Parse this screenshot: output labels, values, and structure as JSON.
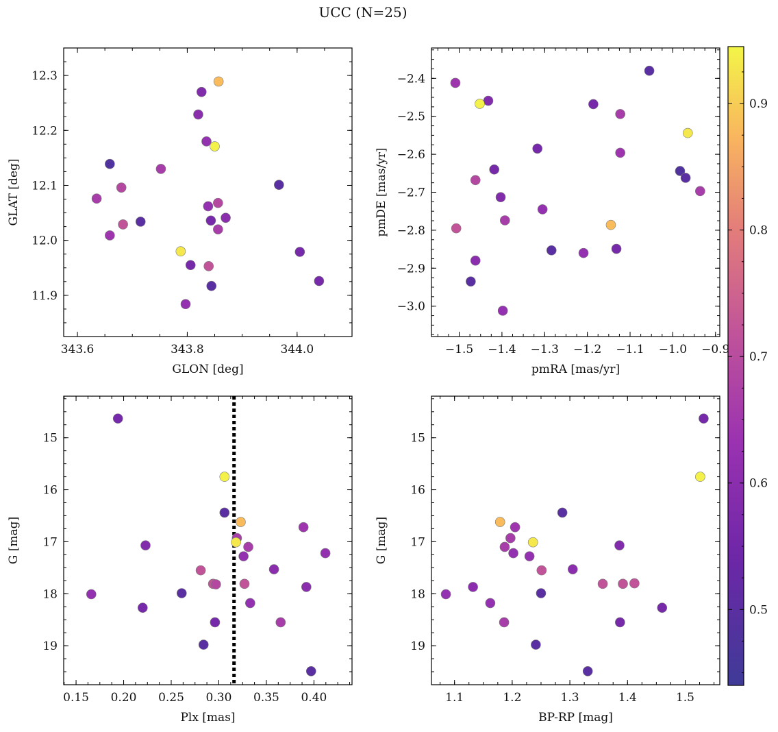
{
  "figure": {
    "title": "UCC (N=25)"
  },
  "colorbar": {
    "range": [
      0.44,
      0.945
    ],
    "ticks": [
      0.5,
      0.6,
      0.7,
      0.8,
      0.9
    ],
    "tick_labels": [
      "0.5",
      "0.6",
      "0.7",
      "0.8",
      "0.9"
    ],
    "colormap": "plasma"
  },
  "chart_data": [
    {
      "type": "scatter",
      "xlabel": "GLON [deg]",
      "ylabel": "GLAT [deg]",
      "xlim": [
        343.575,
        344.1
      ],
      "ylim": [
        11.825,
        12.35
      ],
      "x_ticks": [
        343.6,
        343.8,
        344.0
      ],
      "x_tick_labels": [
        "343.6",
        "343.8",
        "344.0"
      ],
      "y_ticks": [
        11.9,
        12.0,
        12.1,
        12.2,
        12.3
      ],
      "y_tick_labels": [
        "11.9",
        "12.0",
        "12.1",
        "12.2",
        "12.3"
      ],
      "y_inverted": false,
      "points": [
        {
          "x": 343.857,
          "y": 12.289,
          "c": 0.88
        },
        {
          "x": 343.826,
          "y": 12.27,
          "c": 0.58
        },
        {
          "x": 343.82,
          "y": 12.229,
          "c": 0.6
        },
        {
          "x": 343.835,
          "y": 12.18,
          "c": 0.62
        },
        {
          "x": 343.85,
          "y": 12.171,
          "c": 0.94
        },
        {
          "x": 343.659,
          "y": 12.139,
          "c": 0.48
        },
        {
          "x": 343.752,
          "y": 12.13,
          "c": 0.66
        },
        {
          "x": 343.967,
          "y": 12.101,
          "c": 0.5
        },
        {
          "x": 343.68,
          "y": 12.096,
          "c": 0.69
        },
        {
          "x": 343.635,
          "y": 12.076,
          "c": 0.66
        },
        {
          "x": 343.856,
          "y": 12.068,
          "c": 0.69
        },
        {
          "x": 343.838,
          "y": 12.062,
          "c": 0.62
        },
        {
          "x": 343.87,
          "y": 12.041,
          "c": 0.6
        },
        {
          "x": 343.843,
          "y": 12.036,
          "c": 0.56
        },
        {
          "x": 343.715,
          "y": 12.034,
          "c": 0.5
        },
        {
          "x": 343.683,
          "y": 12.029,
          "c": 0.72
        },
        {
          "x": 343.856,
          "y": 12.02,
          "c": 0.66
        },
        {
          "x": 343.659,
          "y": 12.009,
          "c": 0.64
        },
        {
          "x": 343.788,
          "y": 11.98,
          "c": 0.93
        },
        {
          "x": 344.005,
          "y": 11.979,
          "c": 0.56
        },
        {
          "x": 343.806,
          "y": 11.955,
          "c": 0.56
        },
        {
          "x": 343.839,
          "y": 11.953,
          "c": 0.72
        },
        {
          "x": 344.04,
          "y": 11.926,
          "c": 0.56
        },
        {
          "x": 343.844,
          "y": 11.917,
          "c": 0.5
        },
        {
          "x": 343.797,
          "y": 11.884,
          "c": 0.62
        }
      ]
    },
    {
      "type": "scatter",
      "xlabel": "pmRA [mas/yr]",
      "ylabel": "pmDE [mas/yr]",
      "xlim": [
        -1.565,
        -0.89
      ],
      "ylim": [
        -3.08,
        -2.32
      ],
      "x_ticks": [
        -1.5,
        -1.4,
        -1.3,
        -1.2,
        -1.1,
        -1.0,
        -0.9
      ],
      "x_tick_labels": [
        "−1.5",
        "−1.4",
        "−1.3",
        "−1.2",
        "−1.1",
        "−1.0",
        "−0.9"
      ],
      "y_ticks": [
        -3.0,
        -2.9,
        -2.8,
        -2.7,
        -2.6,
        -2.5,
        -2.4
      ],
      "y_tick_labels": [
        "−3.0",
        "−2.9",
        "−2.8",
        "−2.7",
        "−2.6",
        "−2.5",
        "−2.4"
      ],
      "y_inverted": false,
      "points": [
        {
          "x": -1.055,
          "y": -2.38,
          "c": 0.5
        },
        {
          "x": -1.509,
          "y": -2.412,
          "c": 0.64
        },
        {
          "x": -1.432,
          "y": -2.459,
          "c": 0.58
        },
        {
          "x": -1.452,
          "y": -2.467,
          "c": 0.94
        },
        {
          "x": -1.186,
          "y": -2.468,
          "c": 0.56
        },
        {
          "x": -1.123,
          "y": -2.494,
          "c": 0.66
        },
        {
          "x": -0.965,
          "y": -2.544,
          "c": 0.93
        },
        {
          "x": -1.317,
          "y": -2.585,
          "c": 0.56
        },
        {
          "x": -1.123,
          "y": -2.596,
          "c": 0.64
        },
        {
          "x": -1.418,
          "y": -2.64,
          "c": 0.56
        },
        {
          "x": -0.983,
          "y": -2.644,
          "c": 0.48
        },
        {
          "x": -0.97,
          "y": -2.662,
          "c": 0.5
        },
        {
          "x": -1.462,
          "y": -2.668,
          "c": 0.69
        },
        {
          "x": -0.936,
          "y": -2.697,
          "c": 0.66
        },
        {
          "x": -1.403,
          "y": -2.713,
          "c": 0.58
        },
        {
          "x": -1.305,
          "y": -2.745,
          "c": 0.62
        },
        {
          "x": -1.393,
          "y": -2.774,
          "c": 0.66
        },
        {
          "x": -1.145,
          "y": -2.786,
          "c": 0.88
        },
        {
          "x": -1.507,
          "y": -2.795,
          "c": 0.72
        },
        {
          "x": -1.132,
          "y": -2.849,
          "c": 0.56
        },
        {
          "x": -1.284,
          "y": -2.853,
          "c": 0.5
        },
        {
          "x": -1.209,
          "y": -2.86,
          "c": 0.62
        },
        {
          "x": -1.462,
          "y": -2.88,
          "c": 0.6
        },
        {
          "x": -1.473,
          "y": -2.935,
          "c": 0.5
        },
        {
          "x": -1.398,
          "y": -3.012,
          "c": 0.62
        }
      ]
    },
    {
      "type": "scatter",
      "xlabel": "Plx [mas]",
      "ylabel": "G [mag]",
      "xlim": [
        0.137,
        0.44
      ],
      "ylim": [
        19.75,
        14.2
      ],
      "x_ticks": [
        0.15,
        0.2,
        0.25,
        0.3,
        0.35,
        0.4
      ],
      "x_tick_labels": [
        "0.15",
        "0.20",
        "0.25",
        "0.30",
        "0.35",
        "0.40"
      ],
      "y_ticks": [
        15,
        16,
        17,
        18,
        19
      ],
      "y_tick_labels": [
        "15",
        "16",
        "17",
        "18",
        "19"
      ],
      "y_inverted": true,
      "reference_line": {
        "x": 0.316,
        "style": "dotted"
      },
      "points": [
        {
          "x": 0.194,
          "y": 14.63,
          "c": 0.56
        },
        {
          "x": 0.306,
          "y": 15.75,
          "c": 0.94
        },
        {
          "x": 0.306,
          "y": 16.44,
          "c": 0.5
        },
        {
          "x": 0.323,
          "y": 16.62,
          "c": 0.88
        },
        {
          "x": 0.389,
          "y": 16.72,
          "c": 0.64
        },
        {
          "x": 0.319,
          "y": 16.93,
          "c": 0.66
        },
        {
          "x": 0.318,
          "y": 17.01,
          "c": 0.93
        },
        {
          "x": 0.223,
          "y": 17.07,
          "c": 0.58
        },
        {
          "x": 0.331,
          "y": 17.1,
          "c": 0.66
        },
        {
          "x": 0.412,
          "y": 17.22,
          "c": 0.62
        },
        {
          "x": 0.326,
          "y": 17.28,
          "c": 0.62
        },
        {
          "x": 0.281,
          "y": 17.55,
          "c": 0.72
        },
        {
          "x": 0.358,
          "y": 17.53,
          "c": 0.6
        },
        {
          "x": 0.294,
          "y": 17.81,
          "c": 0.72
        },
        {
          "x": 0.297,
          "y": 17.82,
          "c": 0.69
        },
        {
          "x": 0.327,
          "y": 17.81,
          "c": 0.72
        },
        {
          "x": 0.392,
          "y": 17.87,
          "c": 0.6
        },
        {
          "x": 0.261,
          "y": 17.99,
          "c": 0.5
        },
        {
          "x": 0.166,
          "y": 18.01,
          "c": 0.62
        },
        {
          "x": 0.333,
          "y": 18.18,
          "c": 0.62
        },
        {
          "x": 0.22,
          "y": 18.27,
          "c": 0.56
        },
        {
          "x": 0.296,
          "y": 18.55,
          "c": 0.56
        },
        {
          "x": 0.365,
          "y": 18.55,
          "c": 0.66
        },
        {
          "x": 0.284,
          "y": 18.98,
          "c": 0.5
        },
        {
          "x": 0.397,
          "y": 19.49,
          "c": 0.5
        }
      ]
    },
    {
      "type": "scatter",
      "xlabel": "BP-RP [mag]",
      "ylabel": "G [mag]",
      "xlim": [
        1.06,
        1.56
      ],
      "ylim": [
        19.75,
        14.2
      ],
      "x_ticks": [
        1.1,
        1.2,
        1.3,
        1.4,
        1.5
      ],
      "x_tick_labels": [
        "1.1",
        "1.2",
        "1.3",
        "1.4",
        "1.5"
      ],
      "y_ticks": [
        15,
        16,
        17,
        18,
        19
      ],
      "y_tick_labels": [
        "15",
        "16",
        "17",
        "18",
        "19"
      ],
      "y_inverted": true,
      "points": [
        {
          "x": 1.532,
          "y": 14.63,
          "c": 0.56
        },
        {
          "x": 1.526,
          "y": 15.75,
          "c": 0.94
        },
        {
          "x": 1.287,
          "y": 16.44,
          "c": 0.5
        },
        {
          "x": 1.179,
          "y": 16.62,
          "c": 0.88
        },
        {
          "x": 1.205,
          "y": 16.72,
          "c": 0.64
        },
        {
          "x": 1.197,
          "y": 16.93,
          "c": 0.66
        },
        {
          "x": 1.236,
          "y": 17.01,
          "c": 0.93
        },
        {
          "x": 1.386,
          "y": 17.07,
          "c": 0.58
        },
        {
          "x": 1.187,
          "y": 17.1,
          "c": 0.66
        },
        {
          "x": 1.202,
          "y": 17.22,
          "c": 0.62
        },
        {
          "x": 1.23,
          "y": 17.28,
          "c": 0.62
        },
        {
          "x": 1.251,
          "y": 17.55,
          "c": 0.72
        },
        {
          "x": 1.305,
          "y": 17.53,
          "c": 0.6
        },
        {
          "x": 1.357,
          "y": 17.81,
          "c": 0.72
        },
        {
          "x": 1.392,
          "y": 17.81,
          "c": 0.72
        },
        {
          "x": 1.412,
          "y": 17.8,
          "c": 0.72
        },
        {
          "x": 1.132,
          "y": 17.87,
          "c": 0.6
        },
        {
          "x": 1.25,
          "y": 17.99,
          "c": 0.5
        },
        {
          "x": 1.085,
          "y": 18.01,
          "c": 0.62
        },
        {
          "x": 1.162,
          "y": 18.18,
          "c": 0.62
        },
        {
          "x": 1.46,
          "y": 18.27,
          "c": 0.56
        },
        {
          "x": 1.387,
          "y": 18.55,
          "c": 0.56
        },
        {
          "x": 1.186,
          "y": 18.55,
          "c": 0.66
        },
        {
          "x": 1.241,
          "y": 18.98,
          "c": 0.5
        },
        {
          "x": 1.331,
          "y": 19.49,
          "c": 0.5
        }
      ]
    }
  ]
}
